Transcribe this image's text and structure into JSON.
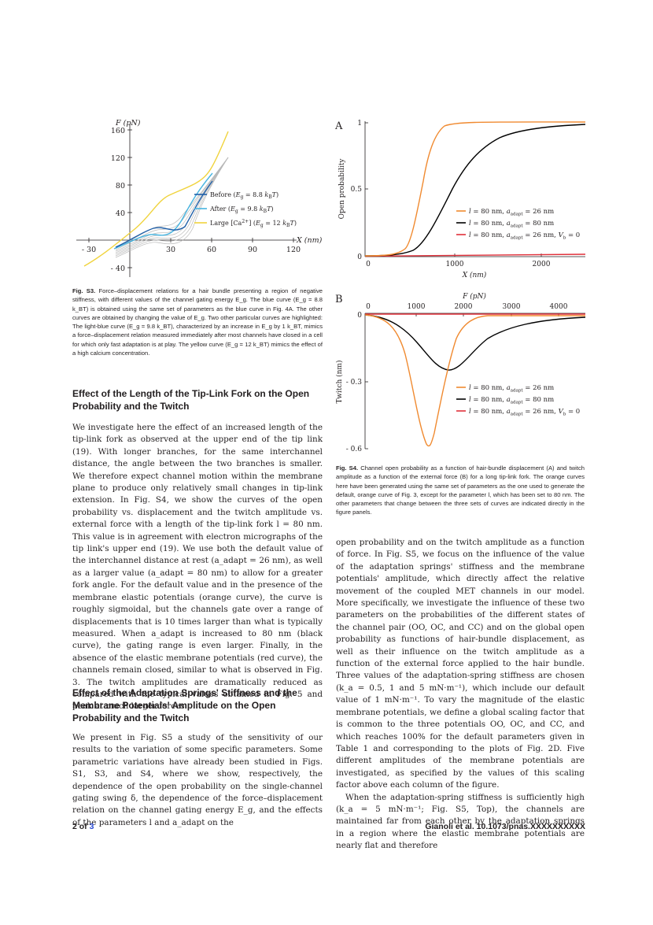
{
  "fig_s3": {
    "y_axis_label": "F (pN)",
    "x_axis_label": "X (nm)",
    "x_ticks": [
      "- 30",
      "30",
      "60",
      "90",
      "120"
    ],
    "y_ticks": [
      "160",
      "120",
      "80",
      "40",
      "- 40"
    ],
    "legend": [
      {
        "label": "Before (E",
        "sub": "g",
        "rest": " = 8.8 k",
        "sub2": "B",
        "end": "T)",
        "color": "#1f5fa8"
      },
      {
        "label": "After   (E",
        "sub": "g",
        "rest": " = 9.8 k",
        "sub2": "B",
        "end": "T)",
        "color": "#46b4e0"
      },
      {
        "label": "Large [Ca",
        "sup": "2+",
        "mid": "]  (E",
        "sub": "g",
        "rest": " = 12 k",
        "sub2": "B",
        "end": "T)",
        "color": "#f0d33c"
      }
    ],
    "caption_label": "Fig. S3.",
    "caption": "Force–displacement relations for a hair bundle presenting a region of negative stiffness, with different values of the channel gating energy E_g. The blue curve (E_g = 8.8 k_BT) is obtained using the same set of parameters as the blue curve in Fig. 4A. The other curves are obtained by changing the value of E_g. Two other particular curves are highlighted: The light-blue curve (E_g = 9.8 k_BT), characterized by an increase in E_g by 1 k_BT, mimics a force–displacement relation measured immediately after most channels have closed in a cell for which only fast adaptation is at play. The yellow curve (E_g = 12 k_BT) mimics the effect of a high calcium concentration."
  },
  "fig_s4": {
    "panel_a_label": "A",
    "panel_b_label": "B",
    "a_y_label": "Open probability",
    "a_x_label": "X (nm)",
    "a_x_ticks": [
      "0",
      "1000",
      "2000"
    ],
    "a_y_ticks": [
      "1",
      "0.5",
      "0"
    ],
    "b_y_label": "Twitch (nm)",
    "b_x_label": "F (pN)",
    "b_x_ticks": [
      "0",
      "1000",
      "2000",
      "3000",
      "4000"
    ],
    "b_y_ticks": [
      "0",
      "- 0.3",
      "- 0.6"
    ],
    "legend": [
      {
        "text": "l = 80 nm, a",
        "sub": "adapt",
        "end": " = 26 nm",
        "color": "#f08a30"
      },
      {
        "text": "l = 80 nm, a",
        "sub": "adapt",
        "end": " = 80 nm",
        "color": "#000000"
      },
      {
        "text": "l = 80 nm, a",
        "sub": "adapt",
        "end": " = 26 nm, V",
        "sub2": "b",
        "end2": " = 0",
        "color": "#e0303a"
      }
    ],
    "caption_label": "Fig. S4.",
    "caption": "Channel open probability as a function of hair-bundle displacement (A) and twitch amplitude as a function of the external force (B) for a long tip-link fork. The orange curves here have been generated using the same set of parameters as the one used to generate the default, orange curve of Fig. 3, except for the parameter l, which has been set to 80 nm. The other parameters that change between the three sets of curves are indicated directly in the figure panels."
  },
  "section1": {
    "heading": "Effect of the Length of the Tip-Link Fork on the Open Probability and the Twitch",
    "paragraph": "We investigate here the effect of an increased length of the tip-link fork as observed at the upper end of the tip link (19). With longer branches, for the same interchannel distance, the angle between the two branches is smaller. We therefore expect channel motion within the membrane plane to produce only relatively small changes in tip-link extension. In Fig. S4, we show the curves of the open probability vs. displacement and the twitch amplitude vs. external force with a length of the tip-link fork l = 80 nm. This value is in agreement with electron micrographs of the tip link's upper end (19). We use both the default value of the interchannel distance at rest (a_adapt = 26 nm), as well as a larger value (a_adapt = 80 nm) to allow for a greater fork angle. For the default value and in the presence of the membrane elastic potentials (orange curve), the curve is roughly sigmoidal, but the channels gate over a range of displacements that is 10 times larger than what is typically measured. When a_adapt is increased to 80 nm (black curve), the gating range is even larger. Finally, in the absence of the elastic membrane potentials (red curve), the channels remain closed, similar to what is observed in Fig. 3. The twitch amplitudes are dramatically reduced as compared with the typical values obtained in Fig. 5 and peak at much larger forces."
  },
  "section2": {
    "heading": "Effect of the Adaptation Springs' Stiffness and the Membrane Potentials' Amplitude on the Open Probability and the Twitch",
    "paragraph": "We present in Fig. S5 a study of the sensitivity of our results to the variation of some specific parameters. Some parametric variations have already been studied in Figs. S1, S3, and S4, where we show, respectively, the dependence of the open probability on the single-channel gating swing δ, the dependence of the force–displacement relation on the channel gating energy E_g, and the effects of the parameters l and a_adapt on the"
  },
  "right_col": {
    "paragraph1": "open probability and on the twitch amplitude as a function of force. In Fig. S5, we focus on the influence of the value of the adaptation springs' stiffness and the membrane potentials' amplitude, which directly affect the relative movement of the coupled MET channels in our model. More specifically, we investigate the influence of these two parameters on the probabilities of the different states of the channel pair (OO, OC, and CC) and on the global open probability as functions of hair-bundle displacement, as well as their influence on the twitch amplitude as a function of the external force applied to the hair bundle. Three values of the adaptation-spring stiffness are chosen (k_a = 0.5, 1 and 5 mN·m⁻¹), which include our default value of 1 mN·m⁻¹. To vary the magnitude of the elastic membrane potentials, we define a global scaling factor that is common to the three potentials OO, OC, and CC, and which reaches 100% for the default parameters given in Table 1 and corresponding to the plots of Fig. 2D. Five different amplitudes of the membrane potentials are investigated, as specified by the values of this scaling factor above each column of the figure.",
    "paragraph2": "When the adaptation-spring stiffness is sufficiently high (k_a = 5 mN·m⁻¹; Fig. S5, Top), the channels are maintained far from each other by the adaptation springs in a region where the elastic membrane potentials are nearly flat and therefore"
  },
  "footer": {
    "page": "2 of ",
    "page_total": "3",
    "citation": "Gianoli et al. 10.1073/pnas.XXXXXXXXXX"
  }
}
